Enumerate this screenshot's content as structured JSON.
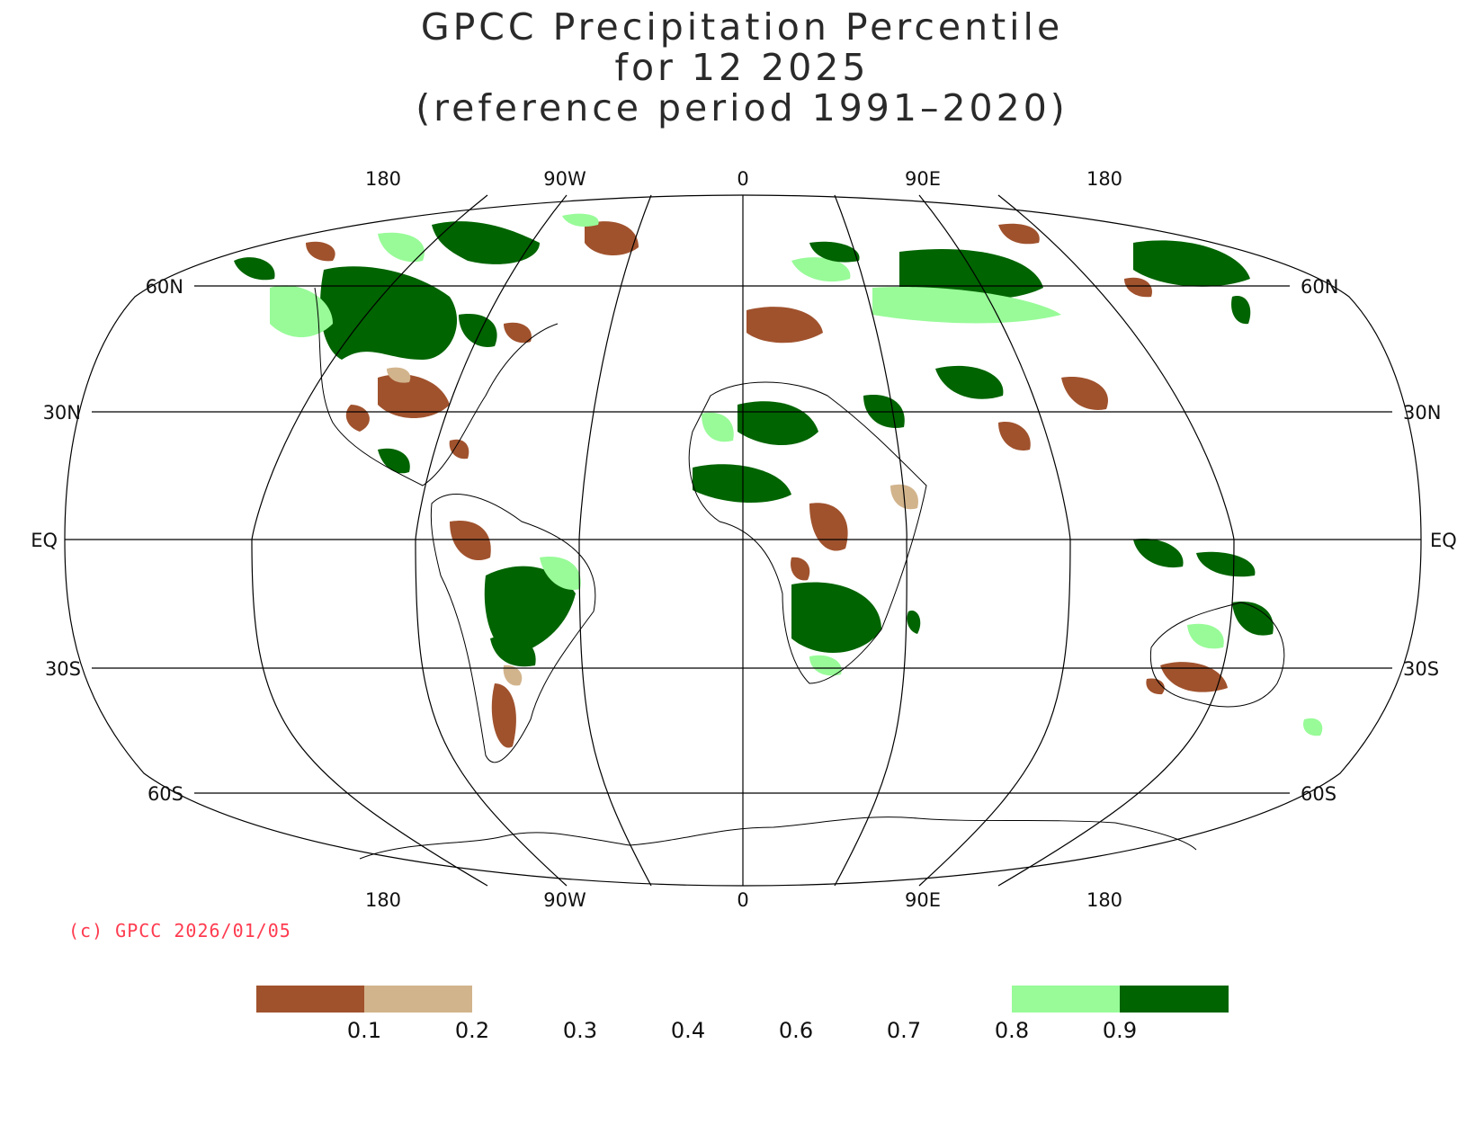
{
  "title": {
    "line1": "GPCC Precipitation Percentile",
    "line2": "for 12 2025",
    "line3": "(reference period 1991–2020)"
  },
  "copyright": "(c) GPCC 2026/01/05",
  "map": {
    "projection": "Robinson",
    "graticule": {
      "meridian_labels": [
        "180",
        "90W",
        "0",
        "90E",
        "180"
      ],
      "parallel_labels_left": [
        "60N",
        "30N",
        "EQ",
        "30S",
        "60S"
      ],
      "parallel_labels_right": [
        "60N",
        "30N",
        "EQ",
        "30S",
        "60S"
      ]
    },
    "regions": [
      {
        "class": "above-0.9",
        "color": "#006400",
        "area": "Canada and western North America"
      },
      {
        "class": "above-0.9",
        "color": "#006400",
        "area": "Siberia"
      },
      {
        "class": "above-0.9",
        "color": "#006400",
        "area": "Sahel and central Africa"
      },
      {
        "class": "above-0.9",
        "color": "#006400",
        "area": "Brazil"
      },
      {
        "class": "above-0.9",
        "color": "#006400",
        "area": "northern Australia"
      },
      {
        "class": "below-0.1",
        "color": "#a0522d",
        "area": "southern United States"
      },
      {
        "class": "below-0.1",
        "color": "#a0522d",
        "area": "Greenland"
      },
      {
        "class": "below-0.1",
        "color": "#a0522d",
        "area": "Europe"
      },
      {
        "class": "below-0.1",
        "color": "#a0522d",
        "area": "Congo basin"
      },
      {
        "class": "below-0.1",
        "color": "#a0522d",
        "area": "India and China"
      },
      {
        "class": "below-0.1",
        "color": "#a0522d",
        "area": "Argentina"
      },
      {
        "class": "below-0.1",
        "color": "#a0522d",
        "area": "southern Australia"
      }
    ]
  },
  "legend": {
    "swatches": [
      {
        "range": "< 0.1",
        "color": "#a0522d"
      },
      {
        "range": "0.1–0.2",
        "color": "#d2b48c"
      },
      {
        "range": "0.8–0.9",
        "color": "#98fb98"
      },
      {
        "range": "> 0.9",
        "color": "#006400"
      }
    ],
    "ticks": [
      "0.1",
      "0.2",
      "0.3",
      "0.4",
      "0.6",
      "0.7",
      "0.8",
      "0.9"
    ]
  }
}
